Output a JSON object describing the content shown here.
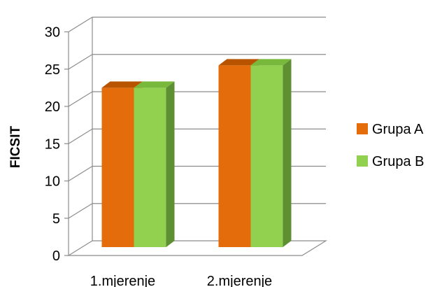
{
  "chart_data": {
    "type": "bar",
    "title": "",
    "xlabel": "",
    "ylabel": "FICSIT",
    "categories": [
      "1.mjerenje",
      "2.mjerenje"
    ],
    "series": [
      {
        "name": "Grupa A",
        "values": [
          22.5,
          25.5
        ],
        "color": "#E46C0A",
        "top_color": "#B85400",
        "side_color": "#A9500A"
      },
      {
        "name": "Grupa B",
        "values": [
          22.5,
          25.5
        ],
        "color": "#92D050",
        "top_color": "#78B83A",
        "side_color": "#5E8F33"
      }
    ],
    "ylim": [
      0,
      30
    ],
    "yticks": [
      "0",
      "5",
      "10",
      "15",
      "20",
      "25",
      "30"
    ],
    "grid": true,
    "legend_position": "right",
    "style": "3d-clustered-column"
  }
}
